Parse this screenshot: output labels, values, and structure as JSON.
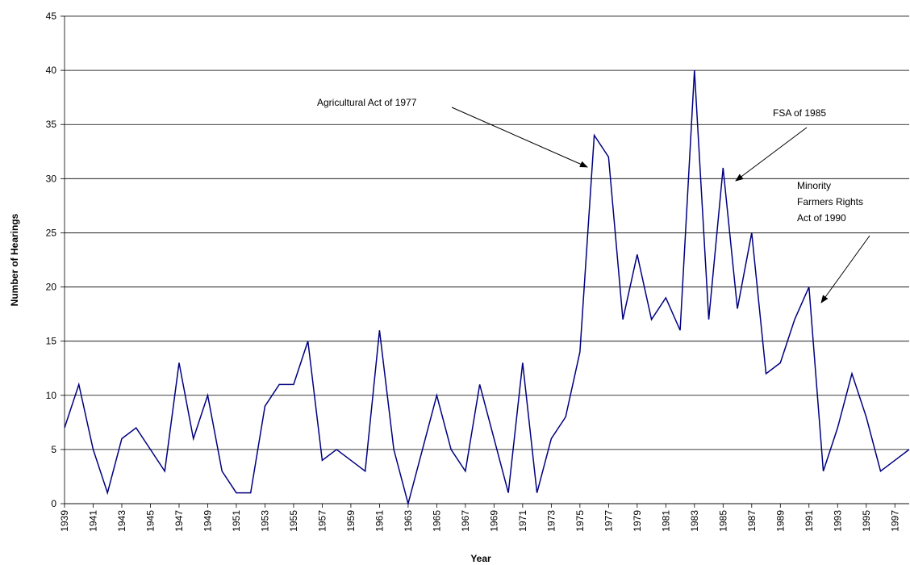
{
  "chart_data": {
    "type": "line",
    "x_label": "Year",
    "y_label": "Number of Hearings",
    "x": [
      1939,
      1940,
      1941,
      1942,
      1943,
      1944,
      1945,
      1946,
      1947,
      1948,
      1949,
      1950,
      1951,
      1952,
      1953,
      1954,
      1955,
      1956,
      1957,
      1958,
      1959,
      1960,
      1961,
      1962,
      1963,
      1964,
      1965,
      1966,
      1967,
      1968,
      1969,
      1970,
      1971,
      1972,
      1973,
      1974,
      1975,
      1976,
      1977,
      1978,
      1979,
      1980,
      1981,
      1982,
      1983,
      1984,
      1985,
      1986,
      1987,
      1988,
      1989,
      1990,
      1991,
      1992,
      1993,
      1994,
      1995,
      1996,
      1997,
      1998
    ],
    "series": [
      {
        "name": "Number of Hearings",
        "color": "#000080",
        "values": [
          7,
          11,
          5,
          1,
          6,
          7,
          5,
          3,
          13,
          6,
          10,
          3,
          1,
          1,
          9,
          11,
          11,
          15,
          4,
          5,
          4,
          3,
          16,
          5,
          0,
          5,
          10,
          5,
          3,
          11,
          6,
          1,
          13,
          1,
          6,
          8,
          14,
          34,
          32,
          17,
          23,
          17,
          19,
          16,
          40,
          17,
          31,
          18,
          25,
          12,
          13,
          17,
          20,
          3,
          7,
          12,
          8,
          3,
          4,
          5
        ]
      }
    ],
    "xlim": [
      1939,
      1998
    ],
    "xticks": [
      1939,
      1941,
      1943,
      1945,
      1947,
      1949,
      1951,
      1953,
      1955,
      1957,
      1959,
      1961,
      1963,
      1965,
      1967,
      1969,
      1971,
      1973,
      1975,
      1977,
      1979,
      1981,
      1983,
      1985,
      1987,
      1989,
      1991,
      1993,
      1995,
      1997
    ],
    "ylim": [
      0,
      45
    ],
    "yticks": [
      0,
      5,
      10,
      15,
      20,
      25,
      30,
      35,
      40,
      45
    ],
    "grid": true,
    "annotations": [
      [
        "Agricultural Act of 1977"
      ],
      [
        "FSA of 1985"
      ],
      [
        "Minority",
        "Farmers Rights",
        "Act of 1990"
      ]
    ]
  }
}
